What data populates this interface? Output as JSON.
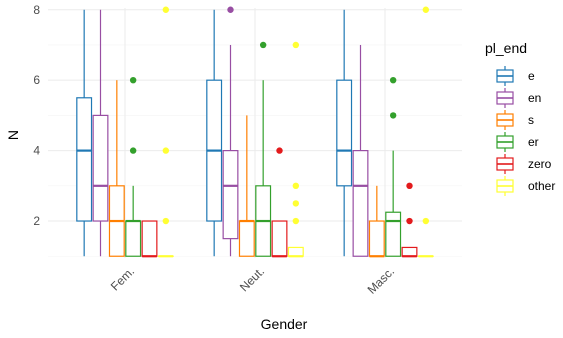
{
  "chart_data": {
    "type": "boxplot",
    "xlabel": "Gender",
    "ylabel": "N",
    "categories": [
      "Fem.",
      "Neut.",
      "Masc."
    ],
    "y_ticks": [
      2,
      4,
      6,
      8
    ],
    "ylim": [
      0.95,
      8.05
    ],
    "grid": true,
    "legend": {
      "title": "pl_end",
      "placement": "right",
      "entries": [
        "e",
        "en",
        "s",
        "er",
        "zero",
        "other"
      ]
    },
    "series": [
      {
        "name": "e",
        "color": "#1F78B4",
        "boxes": [
          {
            "category": "Fem.",
            "min": 1,
            "q1": 2,
            "median": 4,
            "q3": 5.5,
            "max": 8,
            "outliers": []
          },
          {
            "category": "Neut.",
            "min": 1,
            "q1": 2,
            "median": 4,
            "q3": 6,
            "max": 8,
            "outliers": []
          },
          {
            "category": "Masc.",
            "min": 1,
            "q1": 3,
            "median": 4,
            "q3": 6,
            "max": 8,
            "outliers": []
          }
        ]
      },
      {
        "name": "en",
        "color": "#984EA3",
        "boxes": [
          {
            "category": "Fem.",
            "min": 1,
            "q1": 2,
            "median": 3,
            "q3": 5,
            "max": 8,
            "outliers": []
          },
          {
            "category": "Neut.",
            "min": 1,
            "q1": 1.5,
            "median": 3,
            "q3": 4,
            "max": 7,
            "outliers": [
              8
            ]
          },
          {
            "category": "Masc.",
            "min": 1,
            "q1": 1,
            "median": 3,
            "q3": 4,
            "max": 7,
            "outliers": []
          }
        ]
      },
      {
        "name": "s",
        "color": "#FF7F00",
        "boxes": [
          {
            "category": "Fem.",
            "min": 1,
            "q1": 1,
            "median": 2,
            "q3": 3,
            "max": 6,
            "outliers": []
          },
          {
            "category": "Neut.",
            "min": 1,
            "q1": 1,
            "median": 2,
            "q3": 2,
            "max": 5,
            "outliers": []
          },
          {
            "category": "Masc.",
            "min": 1,
            "q1": 1,
            "median": 1,
            "q3": 2,
            "max": 3,
            "outliers": []
          }
        ]
      },
      {
        "name": "er",
        "color": "#33A02C",
        "boxes": [
          {
            "category": "Fem.",
            "min": 1,
            "q1": 1,
            "median": 2,
            "q3": 2,
            "max": 3,
            "outliers": [
              4,
              6
            ]
          },
          {
            "category": "Neut.",
            "min": 1,
            "q1": 1,
            "median": 2,
            "q3": 3,
            "max": 6,
            "outliers": [
              7
            ]
          },
          {
            "category": "Masc.",
            "min": 1,
            "q1": 1,
            "median": 2,
            "q3": 2.25,
            "max": 4,
            "outliers": [
              5,
              6
            ]
          }
        ]
      },
      {
        "name": "zero",
        "color": "#E31A1C",
        "boxes": [
          {
            "category": "Fem.",
            "min": 1,
            "q1": 1,
            "median": 1,
            "q3": 2,
            "max": 2,
            "outliers": []
          },
          {
            "category": "Neut.",
            "min": 1,
            "q1": 1,
            "median": 1,
            "q3": 2,
            "max": 2,
            "outliers": [
              4
            ]
          },
          {
            "category": "Masc.",
            "min": 1,
            "q1": 1,
            "median": 1,
            "q3": 1.25,
            "max": 1.25,
            "outliers": [
              2,
              3
            ]
          }
        ]
      },
      {
        "name": "other",
        "color": "#FFFF33",
        "boxes": [
          {
            "category": "Fem.",
            "min": 1,
            "q1": 1,
            "median": 1,
            "q3": 1,
            "max": 1,
            "outliers": [
              2,
              4,
              8
            ]
          },
          {
            "category": "Neut.",
            "min": 1,
            "q1": 1,
            "median": 1,
            "q3": 1.25,
            "max": 1.25,
            "outliers": [
              2,
              2.5,
              3,
              7
            ]
          },
          {
            "category": "Masc.",
            "min": 1,
            "q1": 1,
            "median": 1,
            "q3": 1,
            "max": 1,
            "outliers": [
              2,
              8
            ]
          }
        ]
      }
    ]
  }
}
